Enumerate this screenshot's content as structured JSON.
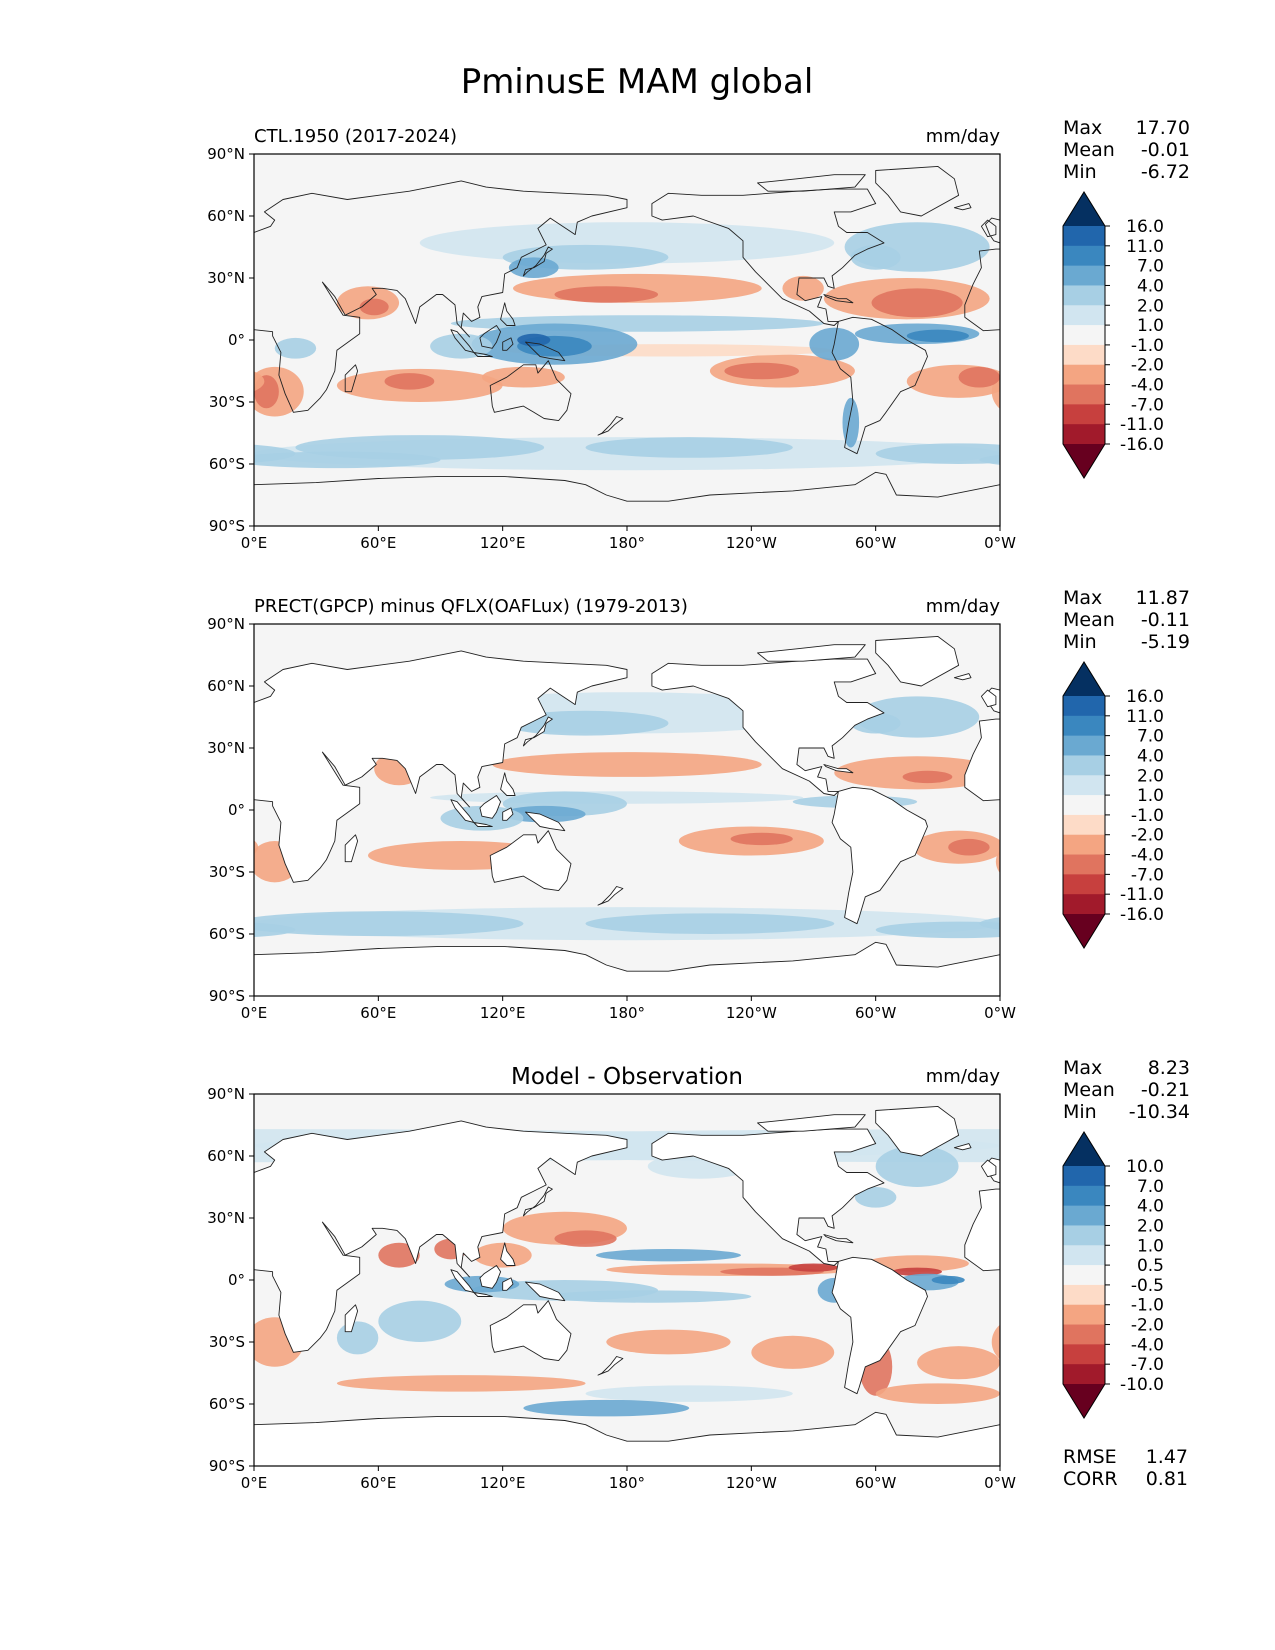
{
  "figure_title": "PminusE MAM global",
  "chart_data": [
    {
      "type": "heatmap",
      "kind": "map",
      "title": "CTL.1950 (2017-2024)",
      "units": "mm/day",
      "stats": [
        {
          "label": "Max",
          "value": "17.70"
        },
        {
          "label": "Mean",
          "value": "-0.01"
        },
        {
          "label": "Min",
          "value": "-6.72"
        }
      ],
      "colorbar_levels": [
        "16.0",
        "11.0",
        "7.0",
        "4.0",
        "2.0",
        "1.0",
        "-1.0",
        "-2.0",
        "-4.0",
        "-7.0",
        "-11.0",
        "-16.0"
      ],
      "x_ticks": [
        "0°E",
        "60°E",
        "120°E",
        "180°",
        "120°W",
        "60°W",
        "0°W"
      ],
      "y_ticks": [
        "90°N",
        "60°N",
        "30°N",
        "0°",
        "30°S",
        "60°S",
        "90°S"
      ]
    },
    {
      "type": "heatmap",
      "kind": "map",
      "title": "PRECT(GPCP) minus QFLX(OAFLux) (1979-2013)",
      "units": "mm/day",
      "stats": [
        {
          "label": "Max",
          "value": "11.87"
        },
        {
          "label": "Mean",
          "value": "-0.11"
        },
        {
          "label": "Min",
          "value": "-5.19"
        }
      ],
      "colorbar_levels": [
        "16.0",
        "11.0",
        "7.0",
        "4.0",
        "2.0",
        "1.0",
        "-1.0",
        "-2.0",
        "-4.0",
        "-7.0",
        "-11.0",
        "-16.0"
      ],
      "x_ticks": [
        "0°E",
        "60°E",
        "120°E",
        "180°",
        "120°W",
        "60°W",
        "0°W"
      ],
      "y_ticks": [
        "90°N",
        "60°N",
        "30°N",
        "0°",
        "30°S",
        "60°S",
        "90°S"
      ]
    },
    {
      "type": "heatmap",
      "kind": "map",
      "title": "Model - Observation",
      "units": "mm/day",
      "stats": [
        {
          "label": "Max",
          "value": "8.23"
        },
        {
          "label": "Mean",
          "value": "-0.21"
        },
        {
          "label": "Min",
          "value": "-10.34"
        }
      ],
      "colorbar_levels": [
        "10.0",
        "7.0",
        "4.0",
        "2.0",
        "1.0",
        "0.5",
        "-0.5",
        "-1.0",
        "-2.0",
        "-4.0",
        "-7.0",
        "-10.0"
      ],
      "x_ticks": [
        "0°E",
        "60°E",
        "120°E",
        "180°",
        "120°W",
        "60°W",
        "0°W"
      ],
      "y_ticks": [
        "90°N",
        "60°N",
        "30°N",
        "0°",
        "30°S",
        "60°S",
        "90°S"
      ],
      "metrics": [
        {
          "label": "RMSE",
          "value": "1.47"
        },
        {
          "label": "CORR",
          "value": "0.81"
        }
      ]
    }
  ],
  "colors": {
    "background": "#f5f5f5",
    "land": "#ffffff",
    "colormap": [
      "#053061",
      "#2166ac",
      "#3a87bf",
      "#6aa9d1",
      "#a7cfe4",
      "#d1e5f0",
      "#f5f5f5",
      "#fddbc7",
      "#f4a582",
      "#e0745f",
      "#c7403e",
      "#a11a2b",
      "#67001f"
    ]
  }
}
